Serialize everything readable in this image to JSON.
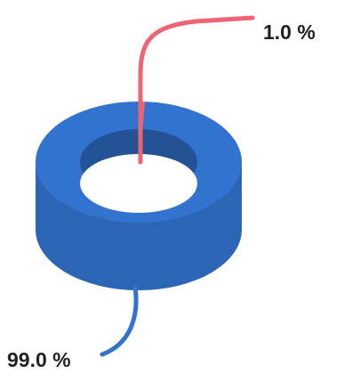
{
  "chart_data": {
    "type": "pie",
    "style": "3d-donut",
    "categories": [
      "",
      ""
    ],
    "values": [
      99.0,
      1.0
    ],
    "colors": [
      "#3273cf",
      "#ef6473"
    ],
    "data_labels": [
      "99.0 %",
      "1.0 %"
    ],
    "title": "",
    "legend": "none"
  }
}
